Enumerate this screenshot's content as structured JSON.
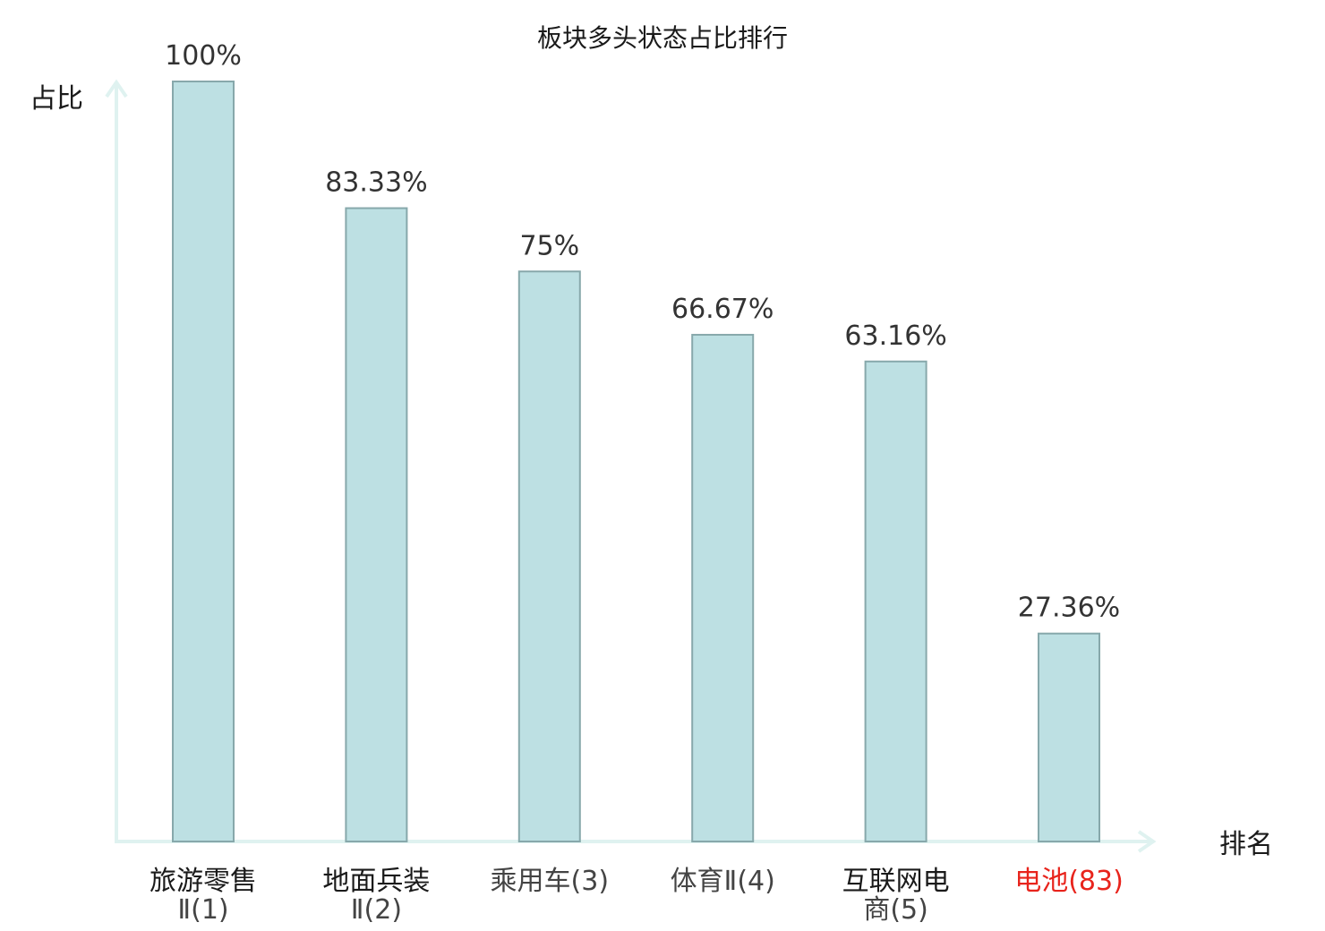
{
  "chart_data": {
    "type": "bar",
    "title": "板块多头状态占比排行",
    "ylabel": "占比",
    "xlabel": "排名",
    "ylim": [
      0,
      100
    ],
    "grid": false,
    "categories": [
      {
        "name_lines": [
          "旅游零售"
        ],
        "rank_text": "Ⅱ(1)",
        "highlight": false
      },
      {
        "name_lines": [
          "地面兵装"
        ],
        "rank_text": "Ⅱ(2)",
        "highlight": false
      },
      {
        "name_lines": [],
        "rank_text": "乘用车(3)",
        "highlight": false
      },
      {
        "name_lines": [],
        "rank_text": "体育Ⅱ(4)",
        "highlight": false
      },
      {
        "name_lines": [
          "互联网电"
        ],
        "rank_text": "商(5)",
        "highlight": false
      },
      {
        "name_lines": [],
        "rank_text": "电池(83)",
        "highlight": true
      }
    ],
    "values": [
      100,
      83.33,
      75,
      66.67,
      63.16,
      27.36
    ],
    "value_labels": [
      "100%",
      "83.33%",
      "75%",
      "66.67%",
      "63.16%",
      "27.36%"
    ],
    "colors": {
      "bar_fill": "#bde0e3",
      "bar_stroke": "#87a8ab",
      "axis": "#dff2f0",
      "highlight_text": "#e8241c"
    }
  }
}
